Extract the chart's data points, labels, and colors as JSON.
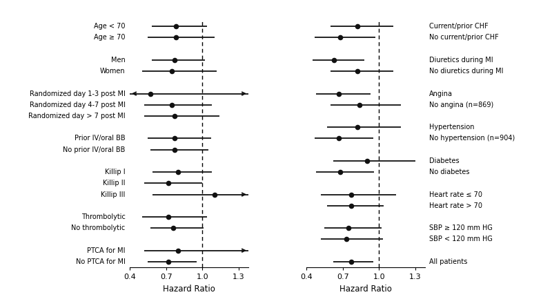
{
  "left_panel": {
    "rows": [
      {
        "label": "Age < 70",
        "hr": 0.78,
        "lo": 0.58,
        "hi": 1.04,
        "arrow_lo": false,
        "arrow_hi": false
      },
      {
        "label": "Age ≥ 70",
        "hr": 0.78,
        "lo": 0.55,
        "hi": 1.1,
        "arrow_lo": false,
        "arrow_hi": false
      },
      {
        "label": null
      },
      {
        "label": "Men",
        "hr": 0.77,
        "lo": 0.58,
        "hi": 1.02,
        "arrow_lo": false,
        "arrow_hi": false
      },
      {
        "label": "Women",
        "hr": 0.75,
        "lo": 0.5,
        "hi": 1.12,
        "arrow_lo": false,
        "arrow_hi": false
      },
      {
        "label": null
      },
      {
        "label": "Randomized day 1-3 post MI",
        "hr": 0.57,
        "lo": 0.4,
        "hi": 1.38,
        "arrow_lo": true,
        "arrow_hi": true
      },
      {
        "label": "Randomized day 4-7 post MI",
        "hr": 0.75,
        "lo": 0.52,
        "hi": 1.08,
        "arrow_lo": false,
        "arrow_hi": false
      },
      {
        "label": "Randomized day > 7 post MI",
        "hr": 0.77,
        "lo": 0.52,
        "hi": 1.14,
        "arrow_lo": false,
        "arrow_hi": false
      },
      {
        "label": null
      },
      {
        "label": "Prior IV/oral BB",
        "hr": 0.77,
        "lo": 0.55,
        "hi": 1.07,
        "arrow_lo": false,
        "arrow_hi": false
      },
      {
        "label": "No prior IV/oral BB",
        "hr": 0.77,
        "lo": 0.57,
        "hi": 1.05,
        "arrow_lo": false,
        "arrow_hi": false
      },
      {
        "label": null
      },
      {
        "label": "Killip I",
        "hr": 0.8,
        "lo": 0.59,
        "hi": 1.08,
        "arrow_lo": false,
        "arrow_hi": false
      },
      {
        "label": "Killip II",
        "hr": 0.72,
        "lo": 0.52,
        "hi": 1.0,
        "arrow_lo": false,
        "arrow_hi": false
      },
      {
        "label": "Killip III",
        "hr": 1.1,
        "lo": 0.59,
        "hi": 1.38,
        "arrow_lo": false,
        "arrow_hi": true
      },
      {
        "label": null
      },
      {
        "label": "Thrombolytic",
        "hr": 0.72,
        "lo": 0.5,
        "hi": 1.04,
        "arrow_lo": false,
        "arrow_hi": false
      },
      {
        "label": "No thrombolytic",
        "hr": 0.76,
        "lo": 0.57,
        "hi": 1.01,
        "arrow_lo": false,
        "arrow_hi": false
      },
      {
        "label": null
      },
      {
        "label": "PTCA for MI",
        "hr": 0.8,
        "lo": 0.52,
        "hi": 1.38,
        "arrow_lo": false,
        "arrow_hi": true
      },
      {
        "label": "No PTCA for MI",
        "hr": 0.72,
        "lo": 0.55,
        "hi": 0.95,
        "arrow_lo": false,
        "arrow_hi": false
      }
    ]
  },
  "right_panel": {
    "rows": [
      {
        "label": "Current/prior CHF",
        "hr": 0.82,
        "lo": 0.6,
        "hi": 1.12,
        "arrow_lo": false,
        "arrow_hi": false
      },
      {
        "label": "No current/prior CHF",
        "hr": 0.68,
        "lo": 0.47,
        "hi": 0.97,
        "arrow_lo": false,
        "arrow_hi": false
      },
      {
        "label": null
      },
      {
        "label": "Diuretics during MI",
        "hr": 0.63,
        "lo": 0.45,
        "hi": 0.88,
        "arrow_lo": false,
        "arrow_hi": false
      },
      {
        "label": "No diuretics during MI",
        "hr": 0.82,
        "lo": 0.6,
        "hi": 1.12,
        "arrow_lo": false,
        "arrow_hi": false
      },
      {
        "label": null
      },
      {
        "label": "Angina",
        "hr": 0.67,
        "lo": 0.48,
        "hi": 0.93,
        "arrow_lo": false,
        "arrow_hi": false
      },
      {
        "label": "No angina (n=869)",
        "hr": 0.84,
        "lo": 0.6,
        "hi": 1.18,
        "arrow_lo": false,
        "arrow_hi": false
      },
      {
        "label": null
      },
      {
        "label": "Hypertension",
        "hr": 0.82,
        "lo": 0.57,
        "hi": 1.18,
        "arrow_lo": false,
        "arrow_hi": false
      },
      {
        "label": "No hypertension (n=904)",
        "hr": 0.67,
        "lo": 0.47,
        "hi": 0.95,
        "arrow_lo": false,
        "arrow_hi": false
      },
      {
        "label": null
      },
      {
        "label": "Diabetes",
        "hr": 0.9,
        "lo": 0.62,
        "hi": 1.3,
        "arrow_lo": false,
        "arrow_hi": false
      },
      {
        "label": "No diabetes",
        "hr": 0.68,
        "lo": 0.48,
        "hi": 0.96,
        "arrow_lo": false,
        "arrow_hi": false
      },
      {
        "label": null
      },
      {
        "label": "Heart rate ≤ 70",
        "hr": 0.77,
        "lo": 0.52,
        "hi": 1.14,
        "arrow_lo": false,
        "arrow_hi": false
      },
      {
        "label": "Heart rate > 70",
        "hr": 0.77,
        "lo": 0.57,
        "hi": 1.04,
        "arrow_lo": false,
        "arrow_hi": false
      },
      {
        "label": null
      },
      {
        "label": "SBP ≥ 120 mm HG",
        "hr": 0.75,
        "lo": 0.55,
        "hi": 1.02,
        "arrow_lo": false,
        "arrow_hi": false
      },
      {
        "label": "SBP < 120 mm HG",
        "hr": 0.73,
        "lo": 0.52,
        "hi": 1.03,
        "arrow_lo": false,
        "arrow_hi": false
      },
      {
        "label": null
      },
      {
        "label": "All patients",
        "hr": 0.77,
        "lo": 0.62,
        "hi": 0.95,
        "arrow_lo": false,
        "arrow_hi": false
      }
    ]
  },
  "xlim": [
    0.4,
    1.38
  ],
  "xticks": [
    0.4,
    0.7,
    1.0,
    1.3
  ],
  "xticklabels": [
    "0.4",
    "0.7",
    "1.0",
    "1.3"
  ],
  "vline": 1.0,
  "xlabel": "Hazard Ratio",
  "dot_color": "#111111",
  "dot_size": 5.5,
  "line_color": "#111111",
  "line_width": 1.3,
  "arrow_clip": 1.38,
  "arrow_clip_lo": 0.4
}
